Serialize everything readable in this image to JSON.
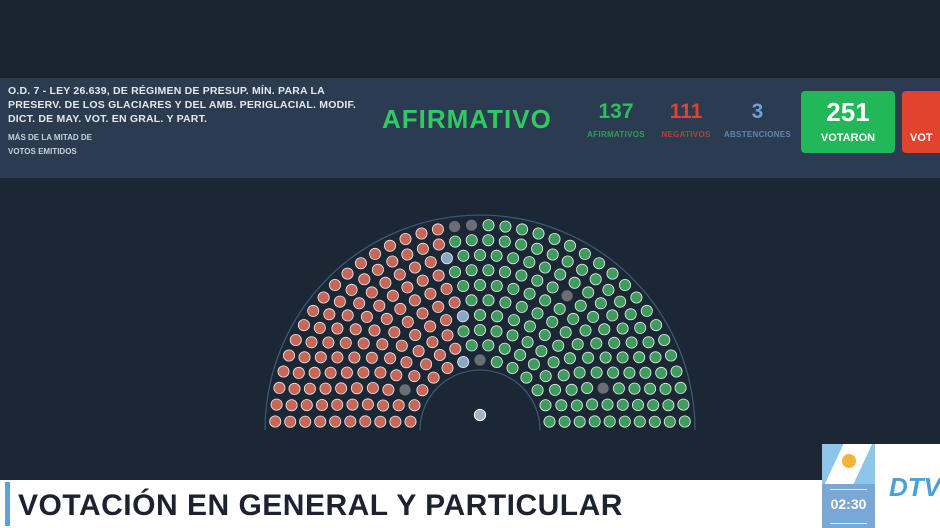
{
  "header": {
    "title": "O.D. 7 - LEY 26.639, DE RÉGIMEN DE PRESUP. MÍN. PARA LA PRESERV. DE LOS GLACIARES Y DEL AMB. PERIGLACIAL. MODIF. DICT. DE MAY. VOT. EN GRAL. Y PART.",
    "majority_line1": "MÁS DE LA MITAD DE",
    "majority_line2": "VOTOS EMITIDOS",
    "result": "AFIRMATIVO"
  },
  "counts": {
    "afirmativos": {
      "value": "137",
      "label": "AFIRMATIVOS",
      "color": "#2fbf62"
    },
    "negativos": {
      "value": "111",
      "label": "NEGATIVOS",
      "color": "#e0413a"
    },
    "abstenciones": {
      "value": "3",
      "label": "ABSTENCIONES",
      "color": "#6f9fd6"
    }
  },
  "votaron": {
    "value": "251",
    "label": "VOTARON",
    "color": "#22b85a"
  },
  "no_votaron": {
    "label": "VOT",
    "color": "#e2432f"
  },
  "chamber": {
    "afirmativo": 137,
    "negativo": 111,
    "abstencion": 3,
    "ausente": 6,
    "colors": {
      "afirmativo": "#3f9c5e",
      "negativo": "#c8665a",
      "abstencion": "#8aa7c7",
      "ausente": "#6b6f75",
      "presidente": "#9cb4cc"
    }
  },
  "lower_third": {
    "text": "VOTACIÓN EN GENERAL Y PARTICULAR",
    "clock": "02:30",
    "channel": "DTV"
  }
}
